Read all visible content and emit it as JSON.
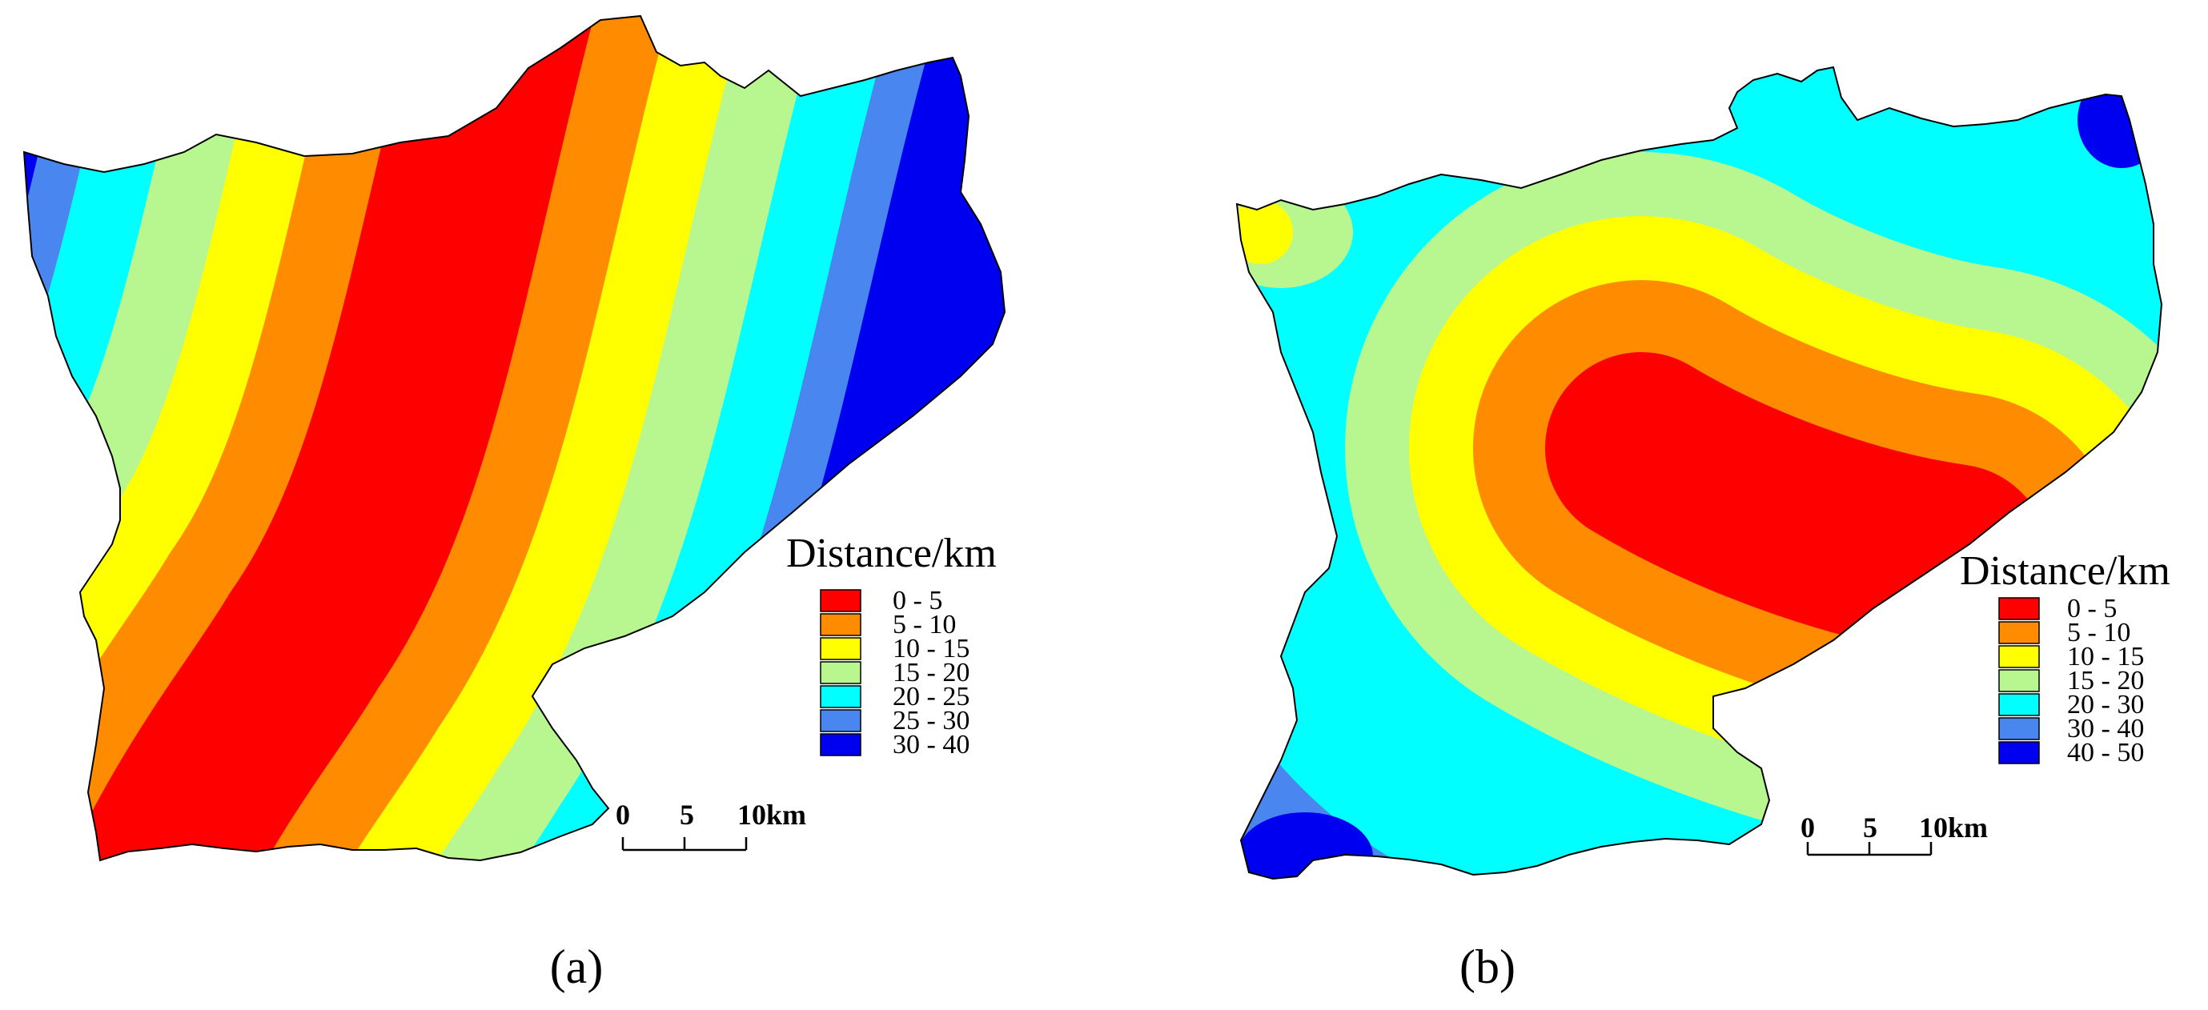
{
  "panels": [
    {
      "id": "a",
      "caption": "(a)",
      "legend_title": "Distance/km",
      "legend": [
        {
          "label": "0 - 5",
          "color": "#ff0000"
        },
        {
          "label": "5 - 10",
          "color": "#ff8c00"
        },
        {
          "label": "10 - 15",
          "color": "#ffff00"
        },
        {
          "label": "15 - 20",
          "color": "#b8f78f"
        },
        {
          "label": "20 - 25",
          "color": "#00ffff"
        },
        {
          "label": "25 - 30",
          "color": "#4a86f0"
        },
        {
          "label": "30 - 40",
          "color": "#0000f0"
        }
      ],
      "scale_labels": [
        "0",
        "5",
        "10km"
      ]
    },
    {
      "id": "b",
      "caption": "(b)",
      "legend_title": "Distance/km",
      "legend": [
        {
          "label": "0 - 5",
          "color": "#ff0000"
        },
        {
          "label": "5 - 10",
          "color": "#ff8c00"
        },
        {
          "label": "10 - 15",
          "color": "#ffff00"
        },
        {
          "label": "15 - 20",
          "color": "#b8f78f"
        },
        {
          "label": "20 - 30",
          "color": "#00ffff"
        },
        {
          "label": "30 - 40",
          "color": "#4a86f0"
        },
        {
          "label": "40 - 50",
          "color": "#0000f0"
        }
      ],
      "scale_labels": [
        "0",
        "5",
        "10km"
      ]
    }
  ]
}
